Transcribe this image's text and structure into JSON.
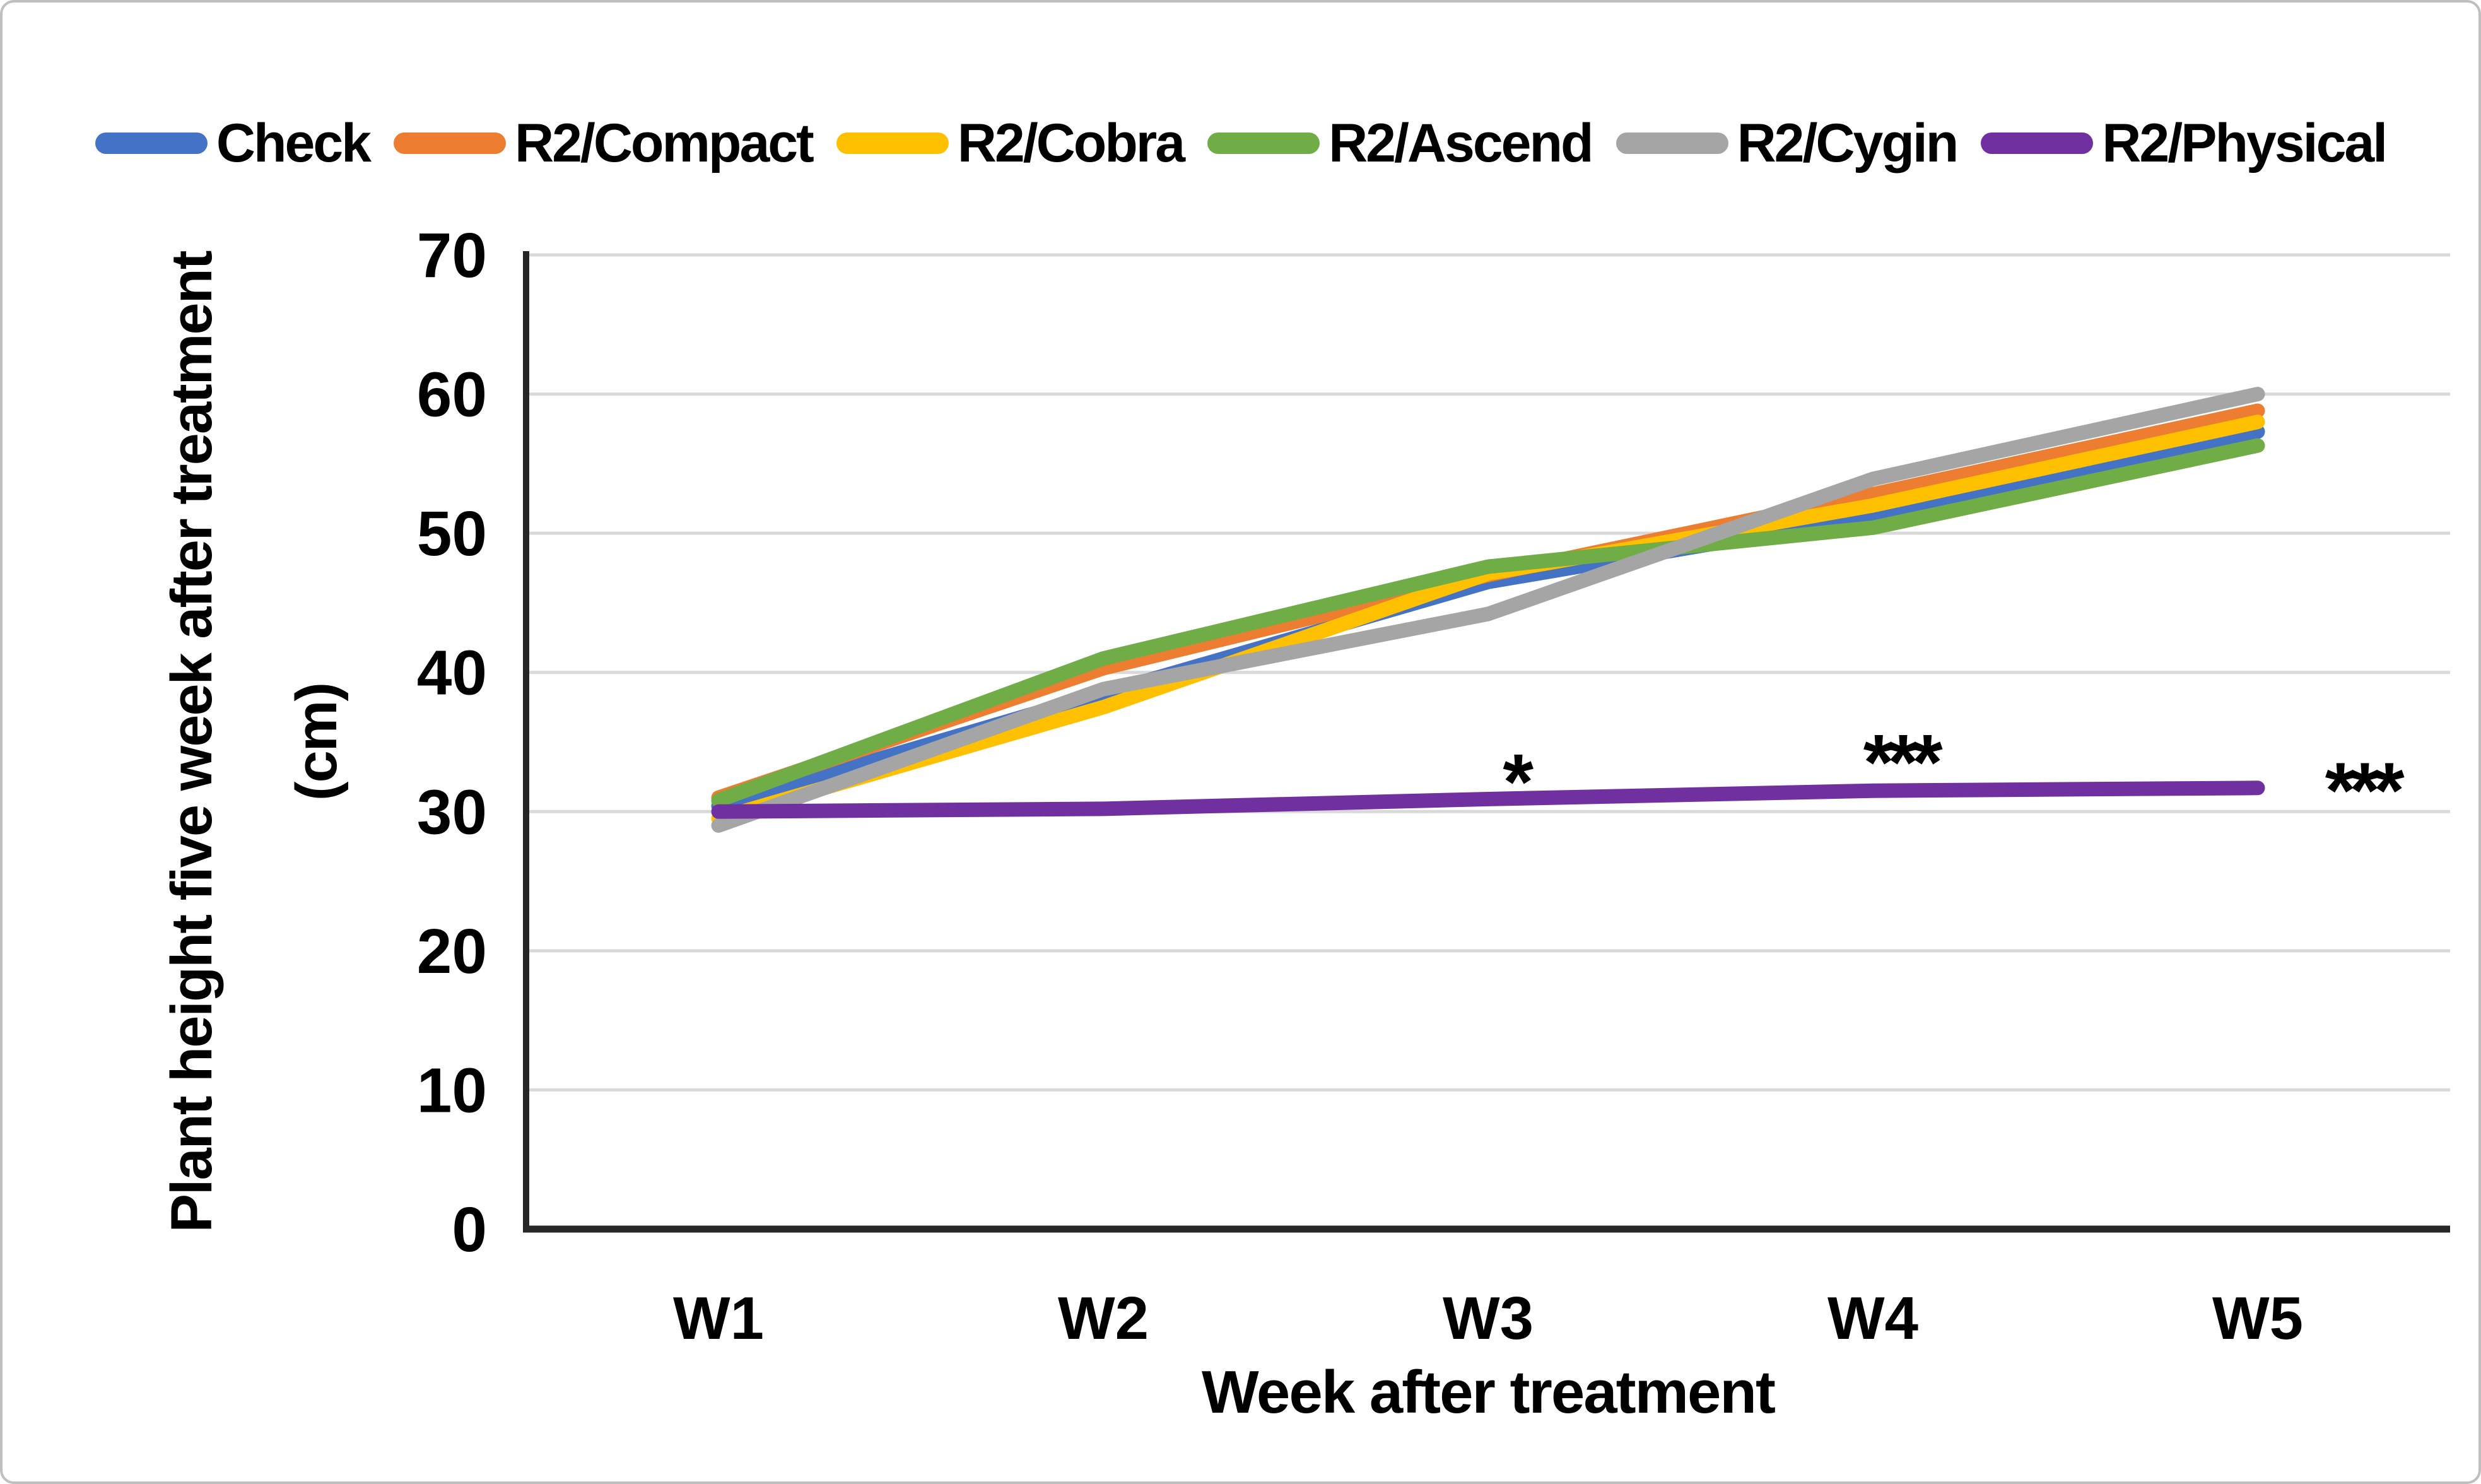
{
  "figure": {
    "background_color": "#ffffff",
    "border_color": "#bfbfbf"
  },
  "legend": {
    "items": [
      {
        "label": "Check",
        "color": "#4472C4"
      },
      {
        "label": "R2/Compact",
        "color": "#ED7D31"
      },
      {
        "label": "R2/Cobra",
        "color": "#FFC000"
      },
      {
        "label": "R2/Ascend",
        "color": "#70AD47"
      },
      {
        "label": "R2/Cygin",
        "color": "#A5A5A5"
      },
      {
        "label": "R2/Physical",
        "color": "#7030A0"
      }
    ]
  },
  "chart_data": {
    "type": "line",
    "title": "",
    "categories": [
      "W1",
      "W2",
      "W3",
      "W4",
      "W5"
    ],
    "series": [
      {
        "name": "Check",
        "color": "#4472C4",
        "values": [
          30.4,
          38.5,
          46.5,
          51.2,
          57.3
        ]
      },
      {
        "name": "R2/Compact",
        "color": "#ED7D31",
        "values": [
          31.0,
          40.3,
          47.0,
          52.8,
          58.8
        ]
      },
      {
        "name": "R2/Cobra",
        "color": "#FFC000",
        "values": [
          29.5,
          37.5,
          47.1,
          52.0,
          58.0
        ]
      },
      {
        "name": "R2/Ascend",
        "color": "#70AD47",
        "values": [
          30.8,
          41.0,
          47.6,
          50.4,
          56.3
        ]
      },
      {
        "name": "R2/Cygin",
        "color": "#A5A5A5",
        "values": [
          29.0,
          38.8,
          44.2,
          53.9,
          60.0
        ]
      },
      {
        "name": "R2/Physical",
        "color": "#7030A0",
        "values": [
          30.0,
          30.2,
          30.9,
          31.5,
          31.7
        ]
      }
    ],
    "ylabel_line1": "Plant height five week after treatment",
    "ylabel_line2": "(cm)",
    "xlabel": "Week after treatment",
    "ylim": [
      0,
      70
    ],
    "yticks": [
      0,
      10,
      20,
      30,
      40,
      50,
      60,
      70
    ],
    "grid": "horizontal",
    "gridline_color": "#D9D9D9",
    "axis_color": "#262626",
    "tick_label_color": "#000000",
    "legend_position": "top",
    "annotations": [
      {
        "text": "*",
        "week_index": 2.07,
        "y": 33.0
      },
      {
        "text": "***",
        "week_index": 3.07,
        "y": 34.4
      },
      {
        "text": "***",
        "week_index": 4.27,
        "y": 32.4
      }
    ]
  }
}
